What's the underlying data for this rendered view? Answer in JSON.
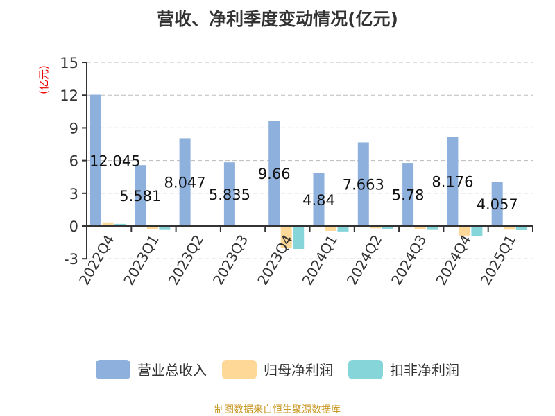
{
  "chart_data": {
    "type": "bar",
    "title": "营收、净利季度变动情况(亿元)",
    "ylabel": "(亿元)",
    "ylim": [
      -3,
      15
    ],
    "yticks": [
      -3,
      0,
      3,
      6,
      9,
      12,
      15
    ],
    "grid": true,
    "legend_position": "bottom",
    "categories": [
      "2022Q4",
      "2023Q1",
      "2023Q2",
      "2023Q3",
      "2023Q4",
      "2024Q1",
      "2024Q2",
      "2024Q3",
      "2024Q4",
      "2025Q1"
    ],
    "series": [
      {
        "name": "营业总收入",
        "color": "#8eb0dc",
        "values": [
          12.045,
          5.581,
          8.047,
          5.835,
          9.66,
          4.84,
          7.663,
          5.78,
          8.176,
          4.057
        ],
        "labels": [
          "12.045",
          "5.581",
          "8.047",
          "5.835",
          "9.66",
          "4.84",
          "7.663",
          "5.78",
          "8.176",
          "4.057"
        ]
      },
      {
        "name": "归母净利润",
        "color": "#fdd897",
        "values": [
          0.33,
          -0.29,
          -0.05,
          -0.05,
          -2.04,
          -0.44,
          -0.21,
          -0.31,
          -0.88,
          -0.34
        ]
      },
      {
        "name": "扣非净利润",
        "color": "#86d5d9",
        "values": [
          0.2,
          -0.36,
          -0.05,
          -0.05,
          -2.1,
          -0.5,
          -0.27,
          -0.36,
          -0.9,
          -0.38
        ]
      }
    ]
  },
  "source": "制图数据来自恒生聚源数据库"
}
